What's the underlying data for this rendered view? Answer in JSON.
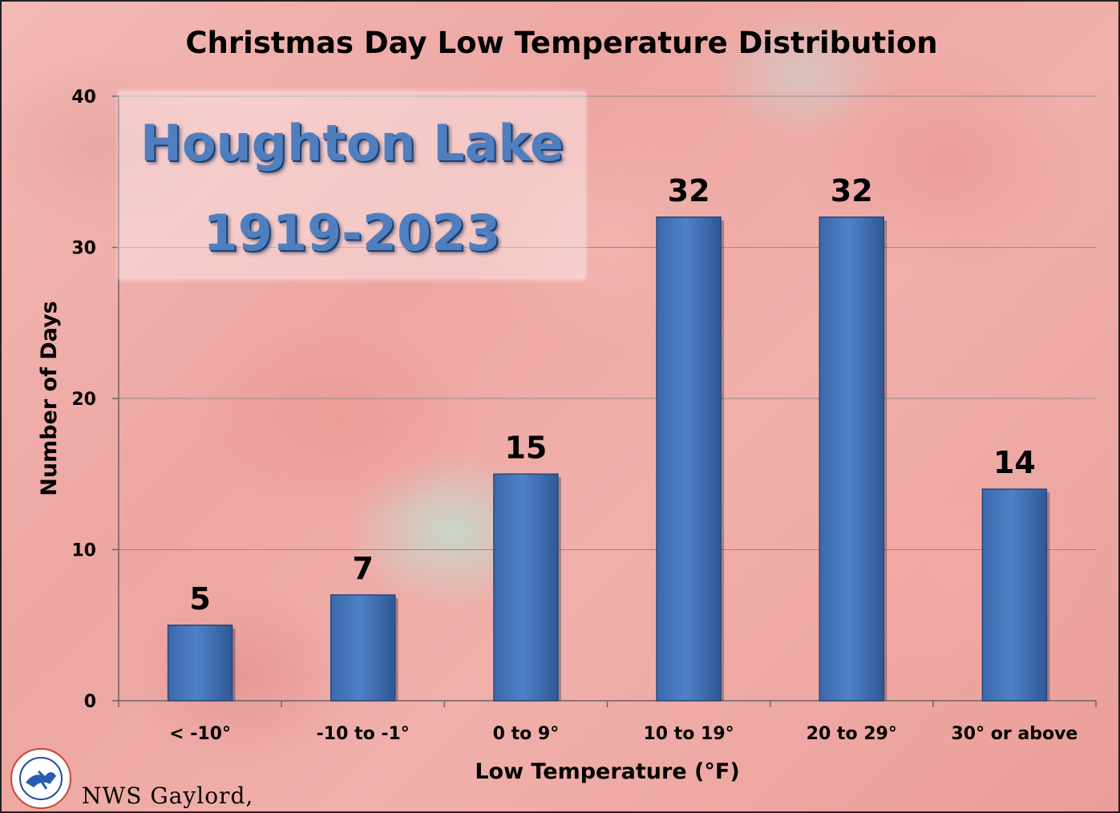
{
  "chart_data": {
    "type": "bar",
    "title": "Christmas Day Low Temperature Distribution",
    "annotation": [
      "Houghton Lake",
      "1919-2023"
    ],
    "categories": [
      "< -10°",
      "-10 to -1°",
      "0 to 9°",
      "10 to 19°",
      "20 to 29°",
      "30° or above"
    ],
    "values": [
      5,
      7,
      15,
      32,
      32,
      14
    ],
    "data_labels": [
      "5",
      "7",
      "15",
      "32",
      "32",
      "14"
    ],
    "xlabel": "Low Temperature (°F)",
    "ylabel": "Number of Days",
    "ylim": [
      0,
      40
    ],
    "yticks": [
      0,
      10,
      20,
      30,
      40
    ],
    "grid": true,
    "bar_color": "#4f81c7"
  },
  "credit": "NWS Gaylord,",
  "logo_text": "NATIONAL WEATHER SERVICE"
}
